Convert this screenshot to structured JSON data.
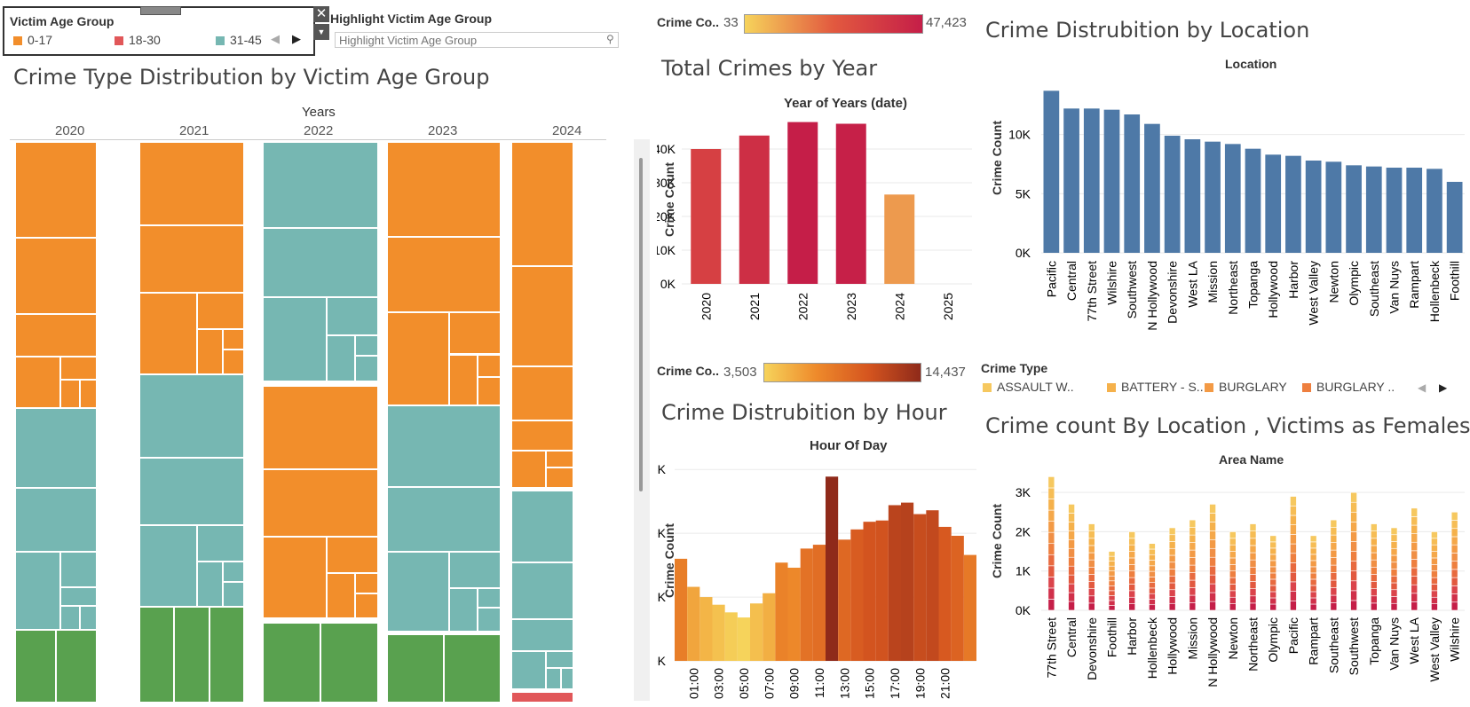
{
  "victim_legend": {
    "title": "Victim Age Group",
    "items": [
      {
        "label": "0-17",
        "color": "#F28E2B"
      },
      {
        "label": "18-30",
        "color": "#E15759"
      },
      {
        "label": "31-45",
        "color": "#76B7B2"
      }
    ]
  },
  "highlight": {
    "title": "Highlight Victim Age Group",
    "placeholder": "Highlight Victim Age Group"
  },
  "treemap": {
    "title": "Crime Type Distribution by Victim Age Group",
    "header": "Years",
    "years": [
      "2020",
      "2021",
      "2022",
      "2023",
      "2024"
    ]
  },
  "color_legend_top": {
    "label": "Crime Co..",
    "min": "33",
    "max": "47,423"
  },
  "color_legend_mid": {
    "label": "Crime Co..",
    "min": "3,503",
    "max": "14,437"
  },
  "chart_data": [
    {
      "type": "bar",
      "title": "Total Crimes by Year",
      "subtitle": "Year of Years (date)",
      "ylabel": "Crime Count",
      "categories": [
        "2020",
        "2021",
        "2022",
        "2023",
        "2024",
        "2025"
      ],
      "values": [
        40000,
        44000,
        48000,
        47500,
        26500,
        0
      ],
      "ylim": [
        0,
        50000
      ],
      "yticks": [
        "0K",
        "10K",
        "20K",
        "30K",
        "40K"
      ]
    },
    {
      "type": "bar",
      "title": "Crime Distrubition by Location",
      "subtitle": "Location",
      "ylabel": "Crime Count",
      "categories": [
        "Pacific",
        "Central",
        "77th Street",
        "Wilshire",
        "Southwest",
        "N Hollywood",
        "Devonshire",
        "West LA",
        "Mission",
        "Northeast",
        "Topanga",
        "Hollywood",
        "Harbor",
        "West Valley",
        "Newton",
        "Olympic",
        "Southeast",
        "Van Nuys",
        "Rampart",
        "Hollenbeck",
        "Foothill"
      ],
      "values": [
        13700,
        12200,
        12200,
        12100,
        11700,
        10900,
        9900,
        9600,
        9400,
        9200,
        8800,
        8300,
        8200,
        7800,
        7700,
        7400,
        7300,
        7200,
        7200,
        7100,
        6000
      ],
      "ylim": [
        0,
        15000
      ],
      "yticks": [
        "0K",
        "5K",
        "10K"
      ],
      "color": "#4E79A7"
    },
    {
      "type": "bar",
      "title": "Crime Distrubition by Hour",
      "subtitle": "Hour Of Day",
      "ylabel": "Crime Count",
      "categories": [
        "00:00",
        "01:00",
        "02:00",
        "03:00",
        "04:00",
        "05:00",
        "06:00",
        "07:00",
        "08:00",
        "09:00",
        "10:00",
        "11:00",
        "12:00",
        "13:00",
        "14:00",
        "15:00",
        "16:00",
        "17:00",
        "18:00",
        "19:00",
        "20:00",
        "21:00",
        "22:00",
        "23:00"
      ],
      "tick_labels": [
        "01:00",
        "03:00",
        "05:00",
        "07:00",
        "09:00",
        "11:00",
        "13:00",
        "15:00",
        "17:00",
        "19:00",
        "21:00"
      ],
      "values": [
        8000,
        5800,
        5000,
        4400,
        3800,
        3400,
        4500,
        5300,
        7700,
        7300,
        8800,
        9100,
        14437,
        9500,
        10300,
        10900,
        11000,
        12200,
        12400,
        11500,
        11800,
        10500,
        9800,
        8300
      ],
      "ylim": [
        0,
        15500
      ],
      "yticks": [
        "0K",
        "5K",
        "10K",
        "15K"
      ]
    },
    {
      "type": "bar",
      "title": "Crime count By Location , Victims as Females",
      "subtitle": "Area Name",
      "ylabel": "Crime Count",
      "categories": [
        "77th Street",
        "Central",
        "Devonshire",
        "Foothill",
        "Harbor",
        "Hollenbeck",
        "Hollywood",
        "Mission",
        "N Hollywood",
        "Newton",
        "Northeast",
        "Olympic",
        "Pacific",
        "Rampart",
        "Southeast",
        "Southwest",
        "Topanga",
        "Van Nuys",
        "West LA",
        "West Valley",
        "Wilshire"
      ],
      "values": [
        3400,
        2700,
        2200,
        1500,
        2000,
        1700,
        2100,
        2300,
        2700,
        2000,
        2200,
        1900,
        2900,
        1900,
        2300,
        3000,
        2200,
        2100,
        2600,
        2000,
        2500
      ],
      "ylim": [
        0,
        3500
      ],
      "yticks": [
        "0K",
        "1K",
        "2K",
        "3K"
      ]
    }
  ],
  "crime_type_legend": {
    "title": "Crime Type",
    "items": [
      {
        "label": "ASSAULT W..",
        "color": "#F6C85F"
      },
      {
        "label": "BATTERY - S..",
        "color": "#F5B14B"
      },
      {
        "label": "BURGLARY",
        "color": "#F39A45"
      },
      {
        "label": "BURGLARY ..",
        "color": "#EE7F3F"
      }
    ]
  },
  "colors": {
    "orange": "#F28E2B",
    "teal": "#76B7B2",
    "green": "#59A14F",
    "red": "#E15759",
    "blue": "#4E79A7"
  }
}
